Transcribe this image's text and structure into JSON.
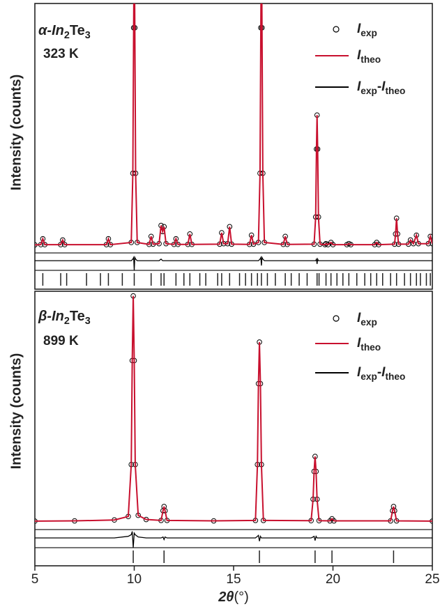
{
  "chart_data": [
    {
      "type": "line",
      "title": "α-In2Te3",
      "subtitle": "323 K",
      "y_label": "Intensity (counts)",
      "xlim": [
        5,
        25
      ],
      "ylim": [
        -10,
        100
      ],
      "y2lim": [
        -3,
        80
      ],
      "x": [
        5.0,
        5.3,
        5.4,
        5.5,
        6.3,
        6.4,
        6.5,
        8.6,
        8.7,
        8.8,
        9.85,
        9.93,
        9.97,
        10.0,
        10.03,
        10.07,
        10.15,
        10.75,
        10.85,
        10.95,
        11.25,
        11.35,
        11.43,
        11.5,
        11.6,
        12.0,
        12.1,
        12.2,
        12.7,
        12.8,
        12.9,
        14.3,
        14.4,
        14.5,
        14.7,
        14.8,
        14.9,
        15.8,
        15.9,
        16.0,
        16.25,
        16.33,
        16.37,
        16.4,
        16.43,
        16.47,
        16.55,
        17.5,
        17.6,
        17.7,
        19.05,
        19.13,
        19.17,
        19.2,
        19.23,
        19.27,
        19.35,
        19.6,
        19.65,
        19.75,
        19.9,
        20.0,
        20.7,
        20.8,
        20.9,
        22.1,
        22.2,
        22.3,
        23.1,
        23.15,
        23.2,
        23.25,
        23.3,
        23.8,
        23.9,
        24.05,
        24.2,
        24.3,
        24.8,
        24.9,
        25.0
      ],
      "series": [
        {
          "name": "Iexp",
          "color": "#000000",
          "marker": "circle",
          "values": [
            0.5,
            0.6,
            3,
            0.6,
            0.6,
            2.5,
            0.6,
            0.6,
            3,
            0.6,
            1.5,
            30,
            90,
            130,
            90,
            30,
            1.5,
            0.7,
            4,
            0.8,
            1,
            8.5,
            6,
            8,
            1,
            0.7,
            3,
            0.7,
            0.7,
            5,
            0.7,
            0.8,
            5.5,
            1,
            1,
            8,
            0.8,
            0.7,
            4.5,
            0.8,
            1.5,
            30,
            90,
            130,
            90,
            30,
            1.5,
            0.7,
            4,
            0.7,
            0.8,
            12,
            40,
            54,
            40,
            12,
            0.8,
            0.6,
            1,
            0.6,
            1.5,
            0.6,
            0.6,
            1,
            0.6,
            0.6,
            1.5,
            0.6,
            0.8,
            5,
            11.5,
            5,
            0.8,
            0.8,
            2.5,
            1,
            4.5,
            1,
            1,
            4,
            1
          ]
        },
        {
          "name": "Itheo",
          "color": "#c8102e",
          "marker": "line",
          "values": [
            0.5,
            0.6,
            3,
            0.6,
            0.6,
            2.5,
            0.6,
            0.6,
            3,
            0.6,
            1.5,
            30,
            90,
            130,
            90,
            30,
            1.5,
            0.7,
            4,
            0.8,
            1,
            8.5,
            6,
            8,
            1,
            0.7,
            3,
            0.7,
            0.7,
            5,
            0.7,
            0.8,
            5.5,
            1,
            1,
            8,
            0.8,
            0.7,
            4.5,
            0.8,
            1.5,
            30,
            90,
            130,
            90,
            30,
            1.5,
            0.7,
            4,
            0.7,
            0.8,
            12,
            40,
            54,
            40,
            12,
            0.8,
            0.6,
            1,
            0.6,
            1.5,
            0.6,
            0.6,
            1,
            0.6,
            0.6,
            1.5,
            0.6,
            0.8,
            5,
            11.5,
            5,
            0.8,
            0.8,
            2.5,
            1,
            4.5,
            1,
            1,
            4,
            1
          ]
        },
        {
          "name": "Iexp-Itheo",
          "color": "#000000",
          "marker": "line",
          "axis": "y2",
          "values": [
            0,
            0,
            0,
            0,
            0,
            0,
            0,
            0,
            0,
            0,
            0,
            0.5,
            1,
            -3,
            1,
            0.5,
            0,
            0,
            0,
            0,
            0,
            0.5,
            0,
            0,
            0,
            0,
            0,
            0,
            0,
            0,
            0,
            0,
            0,
            0,
            0,
            0,
            0,
            0,
            0,
            0,
            0,
            0.5,
            1,
            -1.5,
            1,
            0.5,
            0,
            0,
            0,
            0,
            0,
            0,
            0.5,
            -1,
            0.5,
            0,
            0,
            0,
            0,
            0,
            0,
            0,
            0,
            0,
            0,
            0,
            0,
            0,
            0,
            0,
            0,
            0,
            0,
            0,
            0,
            0,
            0,
            0,
            0,
            0,
            0
          ]
        }
      ],
      "bragg_positions": [
        5.4,
        6.3,
        6.6,
        7.6,
        8.3,
        8.7,
        9.4,
        10.0,
        10.85,
        11.35,
        11.5,
        12.1,
        12.5,
        12.8,
        13.3,
        13.6,
        14.2,
        14.4,
        14.8,
        15.3,
        15.6,
        15.9,
        16.2,
        16.4,
        16.7,
        17.1,
        17.6,
        17.9,
        18.3,
        18.7,
        19.2,
        19.3,
        19.65,
        19.9,
        20.2,
        20.5,
        20.8,
        21.2,
        21.6,
        21.9,
        22.2,
        22.5,
        22.9,
        23.2,
        23.6,
        23.9,
        24.2,
        24.4,
        24.7,
        24.9
      ]
    },
    {
      "type": "line",
      "title": "β-In2Te3",
      "subtitle": "899 K",
      "y_label": "Intensity (counts)",
      "x_label": "2θ(°)",
      "xlim": [
        5,
        25
      ],
      "xticks": [
        5,
        10,
        15,
        20,
        25
      ],
      "ylim": [
        -11,
        100
      ],
      "y2lim": [
        -3,
        76
      ],
      "x": [
        5.0,
        7.0,
        9.0,
        9.7,
        9.85,
        9.9,
        9.95,
        10.0,
        10.05,
        10.2,
        10.6,
        11.35,
        11.45,
        11.5,
        11.55,
        11.65,
        14.0,
        16.1,
        16.2,
        16.25,
        16.3,
        16.35,
        16.4,
        16.5,
        18.9,
        19.0,
        19.05,
        19.1,
        19.15,
        19.2,
        19.3,
        19.85,
        19.95,
        20.05,
        22.9,
        23.0,
        23.05,
        23.1,
        23.2,
        25.0
      ],
      "series": [
        {
          "name": "Iexp",
          "color": "#000000",
          "marker": "circle",
          "values": [
            0.5,
            0.6,
            1,
            2.5,
            25,
            70,
            98,
            70,
            25,
            3,
            1.2,
            0.8,
            5,
            6.8,
            5,
            0.8,
            0.6,
            0.8,
            25,
            60,
            78,
            60,
            25,
            0.8,
            0.7,
            10,
            22,
            28.5,
            22,
            10,
            0.7,
            0.6,
            1.5,
            0.6,
            0.6,
            5,
            6.8,
            5,
            0.6,
            0.5
          ]
        },
        {
          "name": "Itheo",
          "color": "#c8102e",
          "marker": "line",
          "values": [
            0.5,
            0.6,
            1,
            2.5,
            25,
            70,
            98,
            70,
            25,
            3,
            1.2,
            0.8,
            5,
            6.8,
            5,
            0.8,
            0.6,
            0.8,
            25,
            60,
            78,
            60,
            25,
            0.8,
            0.7,
            10,
            22,
            28.5,
            22,
            10,
            0.7,
            0.6,
            1.5,
            0.6,
            0.6,
            5,
            6.8,
            5,
            0.6,
            0.5
          ]
        },
        {
          "name": "Iexp-Itheo",
          "color": "#000000",
          "marker": "line",
          "axis": "y2",
          "values": [
            0,
            0,
            0,
            0.5,
            1,
            2,
            -3,
            1.5,
            1,
            0.3,
            0,
            0,
            0.3,
            -0.5,
            0.3,
            0,
            0,
            0,
            0.5,
            0.8,
            -1,
            0.5,
            0,
            0,
            0,
            0.3,
            0.5,
            -0.8,
            0.5,
            0,
            0,
            0,
            0,
            0,
            0,
            0,
            0,
            0,
            0,
            0
          ]
        }
      ],
      "bragg_positions": [
        9.95,
        11.5,
        16.3,
        19.1,
        19.95,
        23.05
      ]
    }
  ]
}
